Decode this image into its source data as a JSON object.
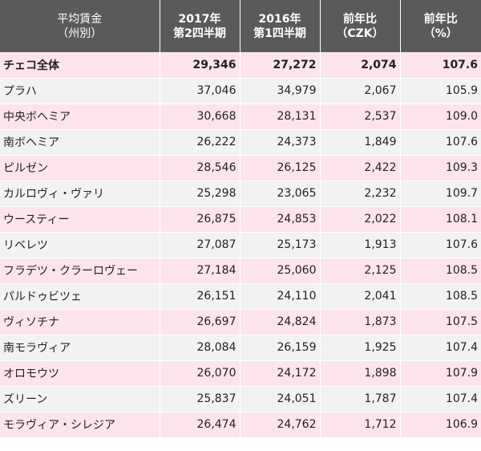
{
  "header": {
    "col0_line1": "平均賃金",
    "col0_line2": "（州別）",
    "col1_line1": "2017年",
    "col1_line2": "第2四半期",
    "col2_line1": "2016年",
    "col2_line2": "第1四半期",
    "col3_line1": "前年比",
    "col3_line2": "（CZK）",
    "col4_line1": "前年比",
    "col4_line2": "（%）"
  },
  "rows": [
    {
      "name": "チェコ全体",
      "q2017": "29,346",
      "q2016": "27,272",
      "diff": "2,074",
      "pct": "107.6"
    },
    {
      "name": "プラハ",
      "q2017": "37,046",
      "q2016": "34,979",
      "diff": "2,067",
      "pct": "105.9"
    },
    {
      "name": "中央ボヘミア",
      "q2017": "30,668",
      "q2016": "28,131",
      "diff": "2,537",
      "pct": "109.0"
    },
    {
      "name": "南ボヘミア",
      "q2017": "26,222",
      "q2016": "24,373",
      "diff": "1,849",
      "pct": "107.6"
    },
    {
      "name": "ピルゼン",
      "q2017": "28,546",
      "q2016": "26,125",
      "diff": "2,422",
      "pct": "109.3"
    },
    {
      "name": "カルロヴィ・ヴァリ",
      "q2017": "25,298",
      "q2016": "23,065",
      "diff": "2,232",
      "pct": "109.7"
    },
    {
      "name": "ウースティー",
      "q2017": "26,875",
      "q2016": "24,853",
      "diff": "2,022",
      "pct": "108.1"
    },
    {
      "name": "リベレツ",
      "q2017": "27,087",
      "q2016": "25,173",
      "diff": "1,913",
      "pct": "107.6"
    },
    {
      "name": "フラデツ・クラーロヴェー",
      "q2017": "27,184",
      "q2016": "25,060",
      "diff": "2,125",
      "pct": "108.5"
    },
    {
      "name": "パルドゥビツェ",
      "q2017": "26,151",
      "q2016": "24,110",
      "diff": "2,041",
      "pct": "108.5"
    },
    {
      "name": "ヴィソチナ",
      "q2017": "26,697",
      "q2016": "24,824",
      "diff": "1,873",
      "pct": "107.5"
    },
    {
      "name": "南モラヴィア",
      "q2017": "28,084",
      "q2016": "26,159",
      "diff": "1,925",
      "pct": "107.4"
    },
    {
      "name": "オロモウツ",
      "q2017": "26,070",
      "q2016": "24,172",
      "diff": "1,898",
      "pct": "107.9"
    },
    {
      "name": "ズリーン",
      "q2017": "25,837",
      "q2016": "24,051",
      "diff": "1,787",
      "pct": "107.4"
    },
    {
      "name": "モラヴィア・シレジア",
      "q2017": "26,474",
      "q2016": "24,762",
      "diff": "1,712",
      "pct": "106.9"
    }
  ]
}
